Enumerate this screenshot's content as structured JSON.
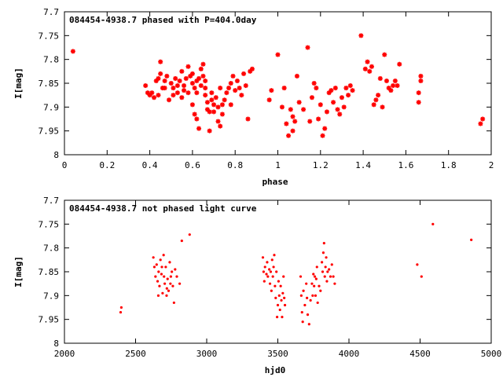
{
  "chart_data": [
    {
      "type": "scatter",
      "title": "084454-4938.7 phased with P=404.0day",
      "xlabel": "phase",
      "ylabel": "I[mag]",
      "xlim": [
        0,
        2
      ],
      "ylim": [
        7.7,
        8
      ],
      "y_inverted": true,
      "grid": false,
      "marker": "star",
      "color": "#ff0000",
      "xticks": [
        "0",
        "0.2",
        "0.4",
        "0.6",
        "0.8",
        "1",
        "1.2",
        "1.4",
        "1.6",
        "1.8",
        "2"
      ],
      "yticks": [
        "7.7",
        "7.75",
        "7.8",
        "7.85",
        "7.9",
        "7.95",
        "8"
      ],
      "points": [
        [
          0.04,
          7.783
        ],
        [
          0.38,
          7.855
        ],
        [
          0.39,
          7.87
        ],
        [
          0.4,
          7.875
        ],
        [
          0.41,
          7.87
        ],
        [
          0.42,
          7.88
        ],
        [
          0.43,
          7.845
        ],
        [
          0.44,
          7.84
        ],
        [
          0.45,
          7.805
        ],
        [
          0.45,
          7.83
        ],
        [
          0.46,
          7.86
        ],
        [
          0.47,
          7.845
        ],
        [
          0.48,
          7.835
        ],
        [
          0.49,
          7.885
        ],
        [
          0.5,
          7.85
        ],
        [
          0.51,
          7.86
        ],
        [
          0.52,
          7.84
        ],
        [
          0.53,
          7.87
        ],
        [
          0.54,
          7.845
        ],
        [
          0.55,
          7.88
        ],
        [
          0.55,
          7.825
        ],
        [
          0.56,
          7.855
        ],
        [
          0.57,
          7.84
        ],
        [
          0.58,
          7.815
        ],
        [
          0.58,
          7.87
        ],
        [
          0.59,
          7.835
        ],
        [
          0.6,
          7.85
        ],
        [
          0.6,
          7.895
        ],
        [
          0.61,
          7.86
        ],
        [
          0.61,
          7.915
        ],
        [
          0.62,
          7.87
        ],
        [
          0.62,
          7.925
        ],
        [
          0.63,
          7.84
        ],
        [
          0.63,
          7.945
        ],
        [
          0.64,
          7.855
        ],
        [
          0.64,
          7.82
        ],
        [
          0.65,
          7.81
        ],
        [
          0.65,
          7.835
        ],
        [
          0.66,
          7.86
        ],
        [
          0.66,
          7.875
        ],
        [
          0.67,
          7.89
        ],
        [
          0.67,
          7.905
        ],
        [
          0.68,
          7.91
        ],
        [
          0.68,
          7.95
        ],
        [
          0.69,
          7.885
        ],
        [
          0.7,
          7.895
        ],
        [
          0.7,
          7.91
        ],
        [
          0.71,
          7.88
        ],
        [
          0.72,
          7.9
        ],
        [
          0.72,
          7.93
        ],
        [
          0.73,
          7.86
        ],
        [
          0.73,
          7.94
        ],
        [
          0.74,
          7.915
        ],
        [
          0.75,
          7.885
        ],
        [
          0.76,
          7.87
        ],
        [
          0.77,
          7.86
        ],
        [
          0.78,
          7.85
        ],
        [
          0.79,
          7.835
        ],
        [
          0.8,
          7.865
        ],
        [
          0.81,
          7.845
        ],
        [
          0.82,
          7.86
        ],
        [
          0.84,
          7.83
        ],
        [
          0.85,
          7.855
        ],
        [
          0.86,
          7.925
        ],
        [
          0.87,
          7.825
        ],
        [
          0.88,
          7.82
        ],
        [
          0.6,
          7.83
        ],
        [
          0.62,
          7.845
        ],
        [
          0.56,
          7.865
        ],
        [
          0.53,
          7.855
        ],
        [
          0.51,
          7.875
        ],
        [
          0.47,
          7.86
        ],
        [
          0.44,
          7.875
        ],
        [
          0.66,
          7.845
        ],
        [
          0.69,
          7.87
        ],
        [
          0.74,
          7.895
        ],
        [
          0.78,
          7.895
        ],
        [
          0.83,
          7.875
        ],
        [
          0.96,
          7.885
        ],
        [
          0.97,
          7.865
        ],
        [
          1.0,
          7.79
        ],
        [
          1.02,
          7.9
        ],
        [
          1.03,
          7.86
        ],
        [
          1.04,
          7.935
        ],
        [
          1.05,
          7.96
        ],
        [
          1.06,
          7.905
        ],
        [
          1.07,
          7.95
        ],
        [
          1.07,
          7.92
        ],
        [
          1.08,
          7.93
        ],
        [
          1.09,
          7.835
        ],
        [
          1.1,
          7.89
        ],
        [
          1.12,
          7.905
        ],
        [
          1.14,
          7.775
        ],
        [
          1.15,
          7.93
        ],
        [
          1.16,
          7.88
        ],
        [
          1.17,
          7.85
        ],
        [
          1.18,
          7.86
        ],
        [
          1.19,
          7.925
        ],
        [
          1.2,
          7.895
        ],
        [
          1.21,
          7.96
        ],
        [
          1.22,
          7.945
        ],
        [
          1.23,
          7.91
        ],
        [
          1.24,
          7.87
        ],
        [
          1.25,
          7.865
        ],
        [
          1.26,
          7.89
        ],
        [
          1.27,
          7.86
        ],
        [
          1.28,
          7.905
        ],
        [
          1.29,
          7.915
        ],
        [
          1.3,
          7.88
        ],
        [
          1.31,
          7.9
        ],
        [
          1.32,
          7.86
        ],
        [
          1.33,
          7.875
        ],
        [
          1.34,
          7.855
        ],
        [
          1.35,
          7.865
        ],
        [
          1.39,
          7.75
        ],
        [
          1.41,
          7.82
        ],
        [
          1.42,
          7.805
        ],
        [
          1.43,
          7.825
        ],
        [
          1.44,
          7.815
        ],
        [
          1.45,
          7.895
        ],
        [
          1.46,
          7.885
        ],
        [
          1.47,
          7.875
        ],
        [
          1.48,
          7.84
        ],
        [
          1.49,
          7.9
        ],
        [
          1.5,
          7.79
        ],
        [
          1.51,
          7.845
        ],
        [
          1.52,
          7.86
        ],
        [
          1.53,
          7.865
        ],
        [
          1.54,
          7.855
        ],
        [
          1.55,
          7.845
        ],
        [
          1.56,
          7.855
        ],
        [
          1.57,
          7.81
        ],
        [
          1.66,
          7.89
        ],
        [
          1.66,
          7.87
        ],
        [
          1.67,
          7.845
        ],
        [
          1.67,
          7.835
        ],
        [
          1.95,
          7.935
        ],
        [
          1.96,
          7.925
        ]
      ]
    },
    {
      "type": "scatter",
      "title": "084454-4938.7 not phased light curve",
      "xlabel": "hjd0",
      "ylabel": "I[mag]",
      "xlim": [
        2000,
        5000
      ],
      "ylim": [
        7.7,
        8
      ],
      "y_inverted": true,
      "grid": false,
      "marker": "dot",
      "color": "#ff0000",
      "xticks": [
        "2000",
        "2500",
        "3000",
        "3500",
        "4000",
        "4500",
        "5000"
      ],
      "yticks": [
        "7.7",
        "7.75",
        "7.8",
        "7.85",
        "7.9",
        "7.95",
        "8"
      ],
      "points": [
        [
          2395,
          7.935
        ],
        [
          2400,
          7.925
        ],
        [
          2625,
          7.82
        ],
        [
          2632,
          7.84
        ],
        [
          2640,
          7.86
        ],
        [
          2648,
          7.835
        ],
        [
          2655,
          7.87
        ],
        [
          2662,
          7.85
        ],
        [
          2668,
          7.88
        ],
        [
          2675,
          7.825
        ],
        [
          2682,
          7.855
        ],
        [
          2690,
          7.895
        ],
        [
          2697,
          7.815
        ],
        [
          2705,
          7.875
        ],
        [
          2712,
          7.84
        ],
        [
          2718,
          7.9
        ],
        [
          2725,
          7.865
        ],
        [
          2732,
          7.89
        ],
        [
          2740,
          7.83
        ],
        [
          2748,
          7.86
        ],
        [
          2755,
          7.85
        ],
        [
          2762,
          7.88
        ],
        [
          2770,
          7.915
        ],
        [
          2778,
          7.845
        ],
        [
          2790,
          7.86
        ],
        [
          2810,
          7.875
        ],
        [
          2825,
          7.785
        ],
        [
          2880,
          7.772
        ],
        [
          2660,
          7.9
        ],
        [
          2700,
          7.86
        ],
        [
          2720,
          7.885
        ],
        [
          2745,
          7.875
        ],
        [
          2685,
          7.84
        ],
        [
          3395,
          7.82
        ],
        [
          3400,
          7.85
        ],
        [
          3405,
          7.87
        ],
        [
          3410,
          7.84
        ],
        [
          3420,
          7.855
        ],
        [
          3425,
          7.83
        ],
        [
          3430,
          7.86
        ],
        [
          3440,
          7.845
        ],
        [
          3445,
          7.875
        ],
        [
          3450,
          7.85
        ],
        [
          3455,
          7.89
        ],
        [
          3460,
          7.825
        ],
        [
          3465,
          7.86
        ],
        [
          3470,
          7.84
        ],
        [
          3475,
          7.815
        ],
        [
          3480,
          7.88
        ],
        [
          3485,
          7.905
        ],
        [
          3490,
          7.85
        ],
        [
          3495,
          7.945
        ],
        [
          3500,
          7.92
        ],
        [
          3505,
          7.87
        ],
        [
          3510,
          7.9
        ],
        [
          3515,
          7.93
        ],
        [
          3520,
          7.88
        ],
        [
          3525,
          7.91
        ],
        [
          3530,
          7.945
        ],
        [
          3535,
          7.895
        ],
        [
          3540,
          7.86
        ],
        [
          3545,
          7.905
        ],
        [
          3550,
          7.92
        ],
        [
          3660,
          7.86
        ],
        [
          3665,
          7.9
        ],
        [
          3670,
          7.935
        ],
        [
          3675,
          7.955
        ],
        [
          3680,
          7.89
        ],
        [
          3690,
          7.92
        ],
        [
          3700,
          7.875
        ],
        [
          3705,
          7.905
        ],
        [
          3710,
          7.94
        ],
        [
          3720,
          7.96
        ],
        [
          3730,
          7.91
        ],
        [
          3740,
          7.875
        ],
        [
          3745,
          7.9
        ],
        [
          3750,
          7.855
        ],
        [
          3755,
          7.88
        ],
        [
          3760,
          7.86
        ],
        [
          3765,
          7.9
        ],
        [
          3770,
          7.865
        ],
        [
          3775,
          7.84
        ],
        [
          3780,
          7.915
        ],
        [
          3790,
          7.88
        ],
        [
          3800,
          7.89
        ],
        [
          3810,
          7.83
        ],
        [
          3815,
          7.85
        ],
        [
          3820,
          7.81
        ],
        [
          3825,
          7.79
        ],
        [
          3830,
          7.86
        ],
        [
          3835,
          7.84
        ],
        [
          3840,
          7.82
        ],
        [
          3845,
          7.87
        ],
        [
          3850,
          7.85
        ],
        [
          3860,
          7.845
        ],
        [
          3870,
          7.86
        ],
        [
          3880,
          7.835
        ],
        [
          3890,
          7.86
        ],
        [
          3900,
          7.875
        ],
        [
          4480,
          7.835
        ],
        [
          4510,
          7.86
        ],
        [
          4590,
          7.75
        ],
        [
          4860,
          7.783
        ]
      ]
    }
  ]
}
